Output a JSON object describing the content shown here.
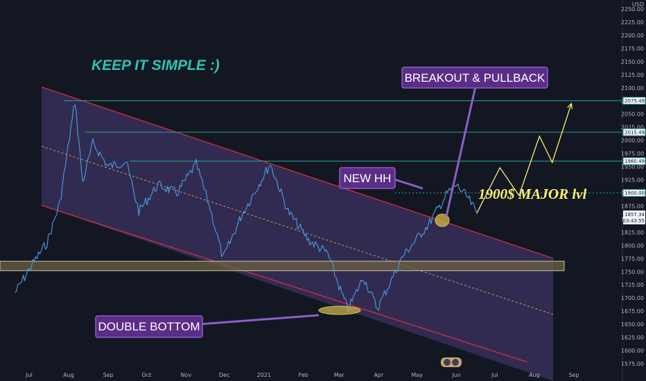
{
  "chart_data": {
    "type": "line",
    "instrument_currency": "USD",
    "x_axis_ticks": [
      "Jul",
      "Aug",
      "Sep",
      "Oct",
      "Nov",
      "Dec",
      "2021",
      "Feb",
      "Mar",
      "Apr",
      "May",
      "Jun",
      "Jul",
      "Aug",
      "Sep"
    ],
    "y_axis_ticks": [
      1575,
      1600,
      1625,
      1650,
      1675,
      1700,
      1725,
      1750,
      1775,
      1800,
      1825,
      1850,
      1875,
      1900,
      1925,
      1950,
      1975,
      2000,
      2025,
      2050,
      2075,
      2100,
      2125,
      2150,
      2175,
      2200,
      2225
    ],
    "y_axis_top_partial": "2250.00",
    "ylim": [
      1560,
      2255
    ],
    "price_series": {
      "color": "#4e9de6",
      "approx_points": [
        [
          "2020-06-20",
          1710
        ],
        [
          "2020-07-05",
          1770
        ],
        [
          "2020-07-15",
          1805
        ],
        [
          "2020-07-25",
          1880
        ],
        [
          "2020-08-06",
          2075
        ],
        [
          "2020-08-12",
          1920
        ],
        [
          "2020-08-20",
          1995
        ],
        [
          "2020-09-01",
          1950
        ],
        [
          "2020-09-15",
          1960
        ],
        [
          "2020-09-25",
          1865
        ],
        [
          "2020-10-10",
          1915
        ],
        [
          "2020-10-25",
          1900
        ],
        [
          "2020-11-09",
          1955
        ],
        [
          "2020-11-20",
          1870
        ],
        [
          "2020-11-30",
          1775
        ],
        [
          "2020-12-15",
          1860
        ],
        [
          "2021-01-06",
          1955
        ],
        [
          "2021-01-20",
          1865
        ],
        [
          "2021-02-05",
          1810
        ],
        [
          "2021-02-20",
          1785
        ],
        [
          "2021-03-02",
          1715
        ],
        [
          "2021-03-08",
          1678
        ],
        [
          "2021-03-20",
          1740
        ],
        [
          "2021-03-31",
          1680
        ],
        [
          "2021-04-20",
          1780
        ],
        [
          "2021-05-10",
          1840
        ],
        [
          "2021-05-25",
          1900
        ],
        [
          "2021-06-01",
          1915
        ],
        [
          "2021-06-10",
          1890
        ],
        [
          "2021-06-17",
          1860
        ]
      ]
    },
    "horizontal_levels": [
      {
        "value": 2075.49,
        "label": "2075.49",
        "color": "#26a69a"
      },
      {
        "value": 2015.49,
        "label": "2015.49",
        "color": "#26a69a"
      },
      {
        "value": 1960.49,
        "label": "1960.49",
        "color": "#26a69a"
      },
      {
        "value": 1900.0,
        "label": "1900.00",
        "color": "#26a69a",
        "style": "dotted"
      }
    ],
    "current_price": {
      "value": 1857.34,
      "label": "1857.34",
      "countdown": "03:43:55"
    },
    "support_zone": [
      1752,
      1770
    ],
    "channel": {
      "upper": [
        [
          "2020-07-25",
          2090
        ],
        [
          "2021-08-25",
          1768
        ]
      ],
      "lower": [
        [
          "2020-07-25",
          1865
        ],
        [
          "2021-08-25",
          1555
        ]
      ],
      "midline_color": "#e6c85a"
    },
    "projection": {
      "color": "#ffef70",
      "points": [
        [
          "2021-06-17",
          1862
        ],
        [
          "2021-07-05",
          1948
        ],
        [
          "2021-07-20",
          1895
        ],
        [
          "2021-08-05",
          2008
        ],
        [
          "2021-08-15",
          1958
        ],
        [
          "2021-08-30",
          2070
        ]
      ]
    },
    "annotations": [
      {
        "text": "KEEP IT SIMPLE :)",
        "color": "#2dc4b2"
      },
      {
        "text": "BREAKOUT & PULLBACK",
        "color": "#ffffff"
      },
      {
        "text": "NEW HH",
        "color": "#ffffff"
      },
      {
        "text": "1900$ MAJOR lvl",
        "color": "#ffef70"
      },
      {
        "text": "DOUBLE BOTTOM",
        "color": "#ffffff"
      }
    ],
    "colors": {
      "background": "#131722",
      "channel_fill": "#4a3d78",
      "channel_edge": "#e03040",
      "callout_fill": "#5a2e86",
      "callout_border": "#8b5fc8"
    }
  }
}
